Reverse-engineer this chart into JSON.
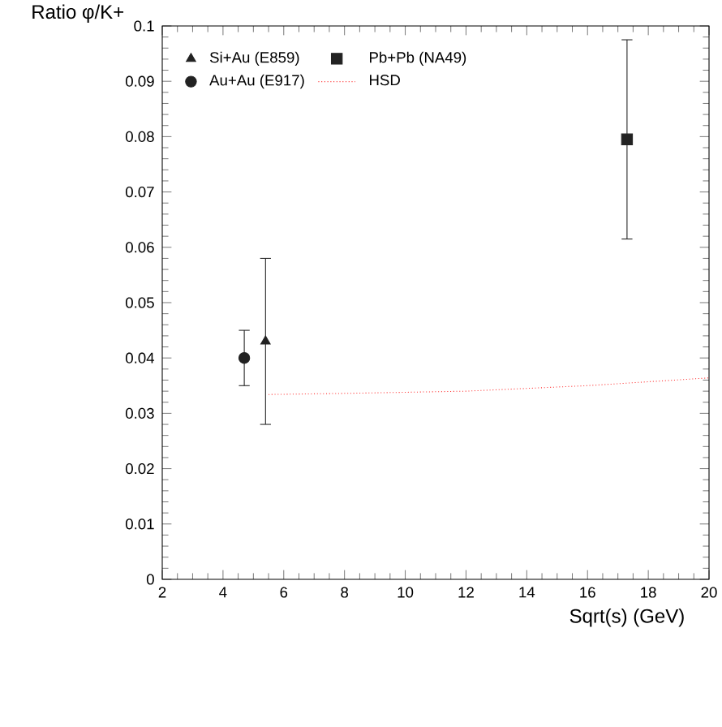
{
  "chart_data": {
    "type": "scatter",
    "xlabel": "Sqrt(s) (GeV)",
    "ylabel": "Ratio φ/K+",
    "xlim": [
      2,
      20
    ],
    "xticks": [
      2,
      4,
      6,
      8,
      10,
      12,
      14,
      16,
      18,
      20
    ],
    "ylim": [
      0,
      0.1
    ],
    "yticks": [
      0,
      0.01,
      0.02,
      0.03,
      0.04,
      0.05,
      0.06,
      0.07,
      0.08,
      0.09,
      0.1
    ],
    "legend": "top left",
    "grid": false,
    "series": [
      {
        "name": "Si+Au (E859)",
        "color": "#222222",
        "marker": "triangle",
        "x": [
          5.4
        ],
        "values": [
          0.043
        ],
        "errors": [
          0.015
        ]
      },
      {
        "name": "Au+Au (E917)",
        "color": "#222222",
        "marker": "circle",
        "x": [
          4.7
        ],
        "values": [
          0.04
        ],
        "errors": [
          0.005
        ]
      },
      {
        "name": "Pb+Pb (NA49)",
        "color": "#222222",
        "marker": "square",
        "x": [
          17.3
        ],
        "values": [
          0.0795
        ],
        "errors": [
          0.018
        ]
      },
      {
        "name": "HSD",
        "type": "line",
        "color": "#ff3333",
        "marker": "none",
        "line_style": "dotted",
        "x": [
          5.5,
          8,
          12,
          16,
          20
        ],
        "values": [
          0.0334,
          0.0336,
          0.034,
          0.035,
          0.0364
        ]
      }
    ]
  }
}
